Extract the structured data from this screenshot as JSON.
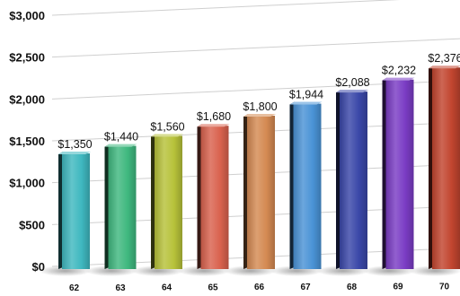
{
  "chart_data": {
    "type": "bar",
    "title": "",
    "xlabel": "",
    "ylabel": "",
    "categories": [
      "62",
      "63",
      "64",
      "65",
      "66",
      "67",
      "68",
      "69",
      "70"
    ],
    "values": [
      1350,
      1440,
      1560,
      1680,
      1800,
      1944,
      2088,
      2232,
      2376
    ],
    "value_labels": [
      "$1,350",
      "$1,440",
      "$1,560",
      "$1,680",
      "$1,800",
      "$1,944",
      "$2,088",
      "$2,232",
      "$2,376"
    ],
    "ylim": [
      0,
      3000
    ],
    "yticks": [
      0,
      500,
      1000,
      1500,
      2000,
      2500,
      3000
    ],
    "ytick_labels": [
      "$0",
      "$500",
      "$1,000",
      "$1,500",
      "$2,000",
      "$2,500",
      "$3,000"
    ],
    "grid": true,
    "bar_colors": [
      "#3fb8c0",
      "#3fb87f",
      "#b7c23a",
      "#d9624e",
      "#d48a52",
      "#4a93d6",
      "#3a47a8",
      "#7a3cc4",
      "#c2452f"
    ]
  }
}
